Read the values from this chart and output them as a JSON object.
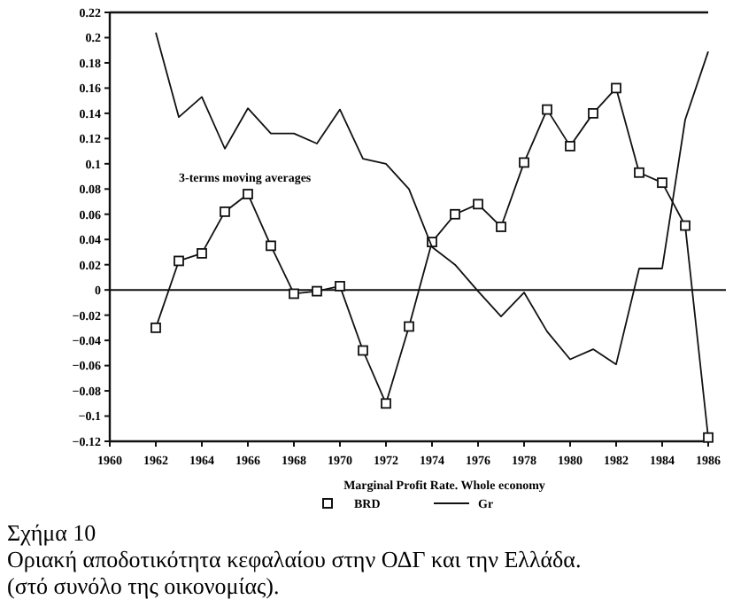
{
  "chart_data": {
    "type": "line",
    "xlabel": "Marginal Profit Rate. Whole economy",
    "x": [
      1962,
      1963,
      1964,
      1965,
      1966,
      1967,
      1968,
      1969,
      1970,
      1971,
      1972,
      1973,
      1974,
      1975,
      1976,
      1977,
      1978,
      1979,
      1980,
      1981,
      1982,
      1983,
      1984,
      1985,
      1986
    ],
    "series": [
      {
        "name": "BRD",
        "color": "#111111",
        "marker": "square",
        "values": [
          -0.03,
          0.023,
          0.029,
          0.062,
          0.076,
          0.035,
          -0.003,
          -0.001,
          0.003,
          -0.048,
          -0.09,
          -0.029,
          0.038,
          0.06,
          0.068,
          0.05,
          0.101,
          0.143,
          0.114,
          0.14,
          0.16,
          0.093,
          0.085,
          0.051,
          -0.117
        ]
      },
      {
        "name": "Gr",
        "color": "#111111",
        "marker": "none",
        "values": [
          0.204,
          0.137,
          0.153,
          0.112,
          0.144,
          0.124,
          0.124,
          0.116,
          0.143,
          0.104,
          0.1,
          0.08,
          0.034,
          0.02,
          -0.001,
          -0.021,
          -0.002,
          -0.033,
          -0.055,
          -0.047,
          -0.059,
          0.017,
          0.017,
          0.135,
          0.189
        ]
      }
    ],
    "xlim": [
      1960,
      1986
    ],
    "xticks": [
      1960,
      1962,
      1964,
      1966,
      1968,
      1970,
      1972,
      1974,
      1976,
      1978,
      1980,
      1982,
      1984,
      1986
    ],
    "ylim": [
      -0.12,
      0.22
    ],
    "yticks": [
      -0.12,
      -0.1,
      -0.08,
      -0.06,
      -0.04,
      -0.02,
      0,
      0.02,
      0.04,
      0.06,
      0.08,
      0.1,
      0.12,
      0.14,
      0.16,
      0.18,
      0.2,
      0.22
    ],
    "ref_lines": [
      {
        "axis": "y",
        "value": 0,
        "color": "#111111"
      }
    ],
    "grid": false,
    "legend": "bottom",
    "annotations": [
      "3-terms moving averages",
      "Σχήμα 10",
      "Οριακή αποδοτικότητα κεφαλαίου στην ΟΔΓ και την Ελλάδα.",
      "(στό συνόλο της οικονομίας)."
    ]
  }
}
